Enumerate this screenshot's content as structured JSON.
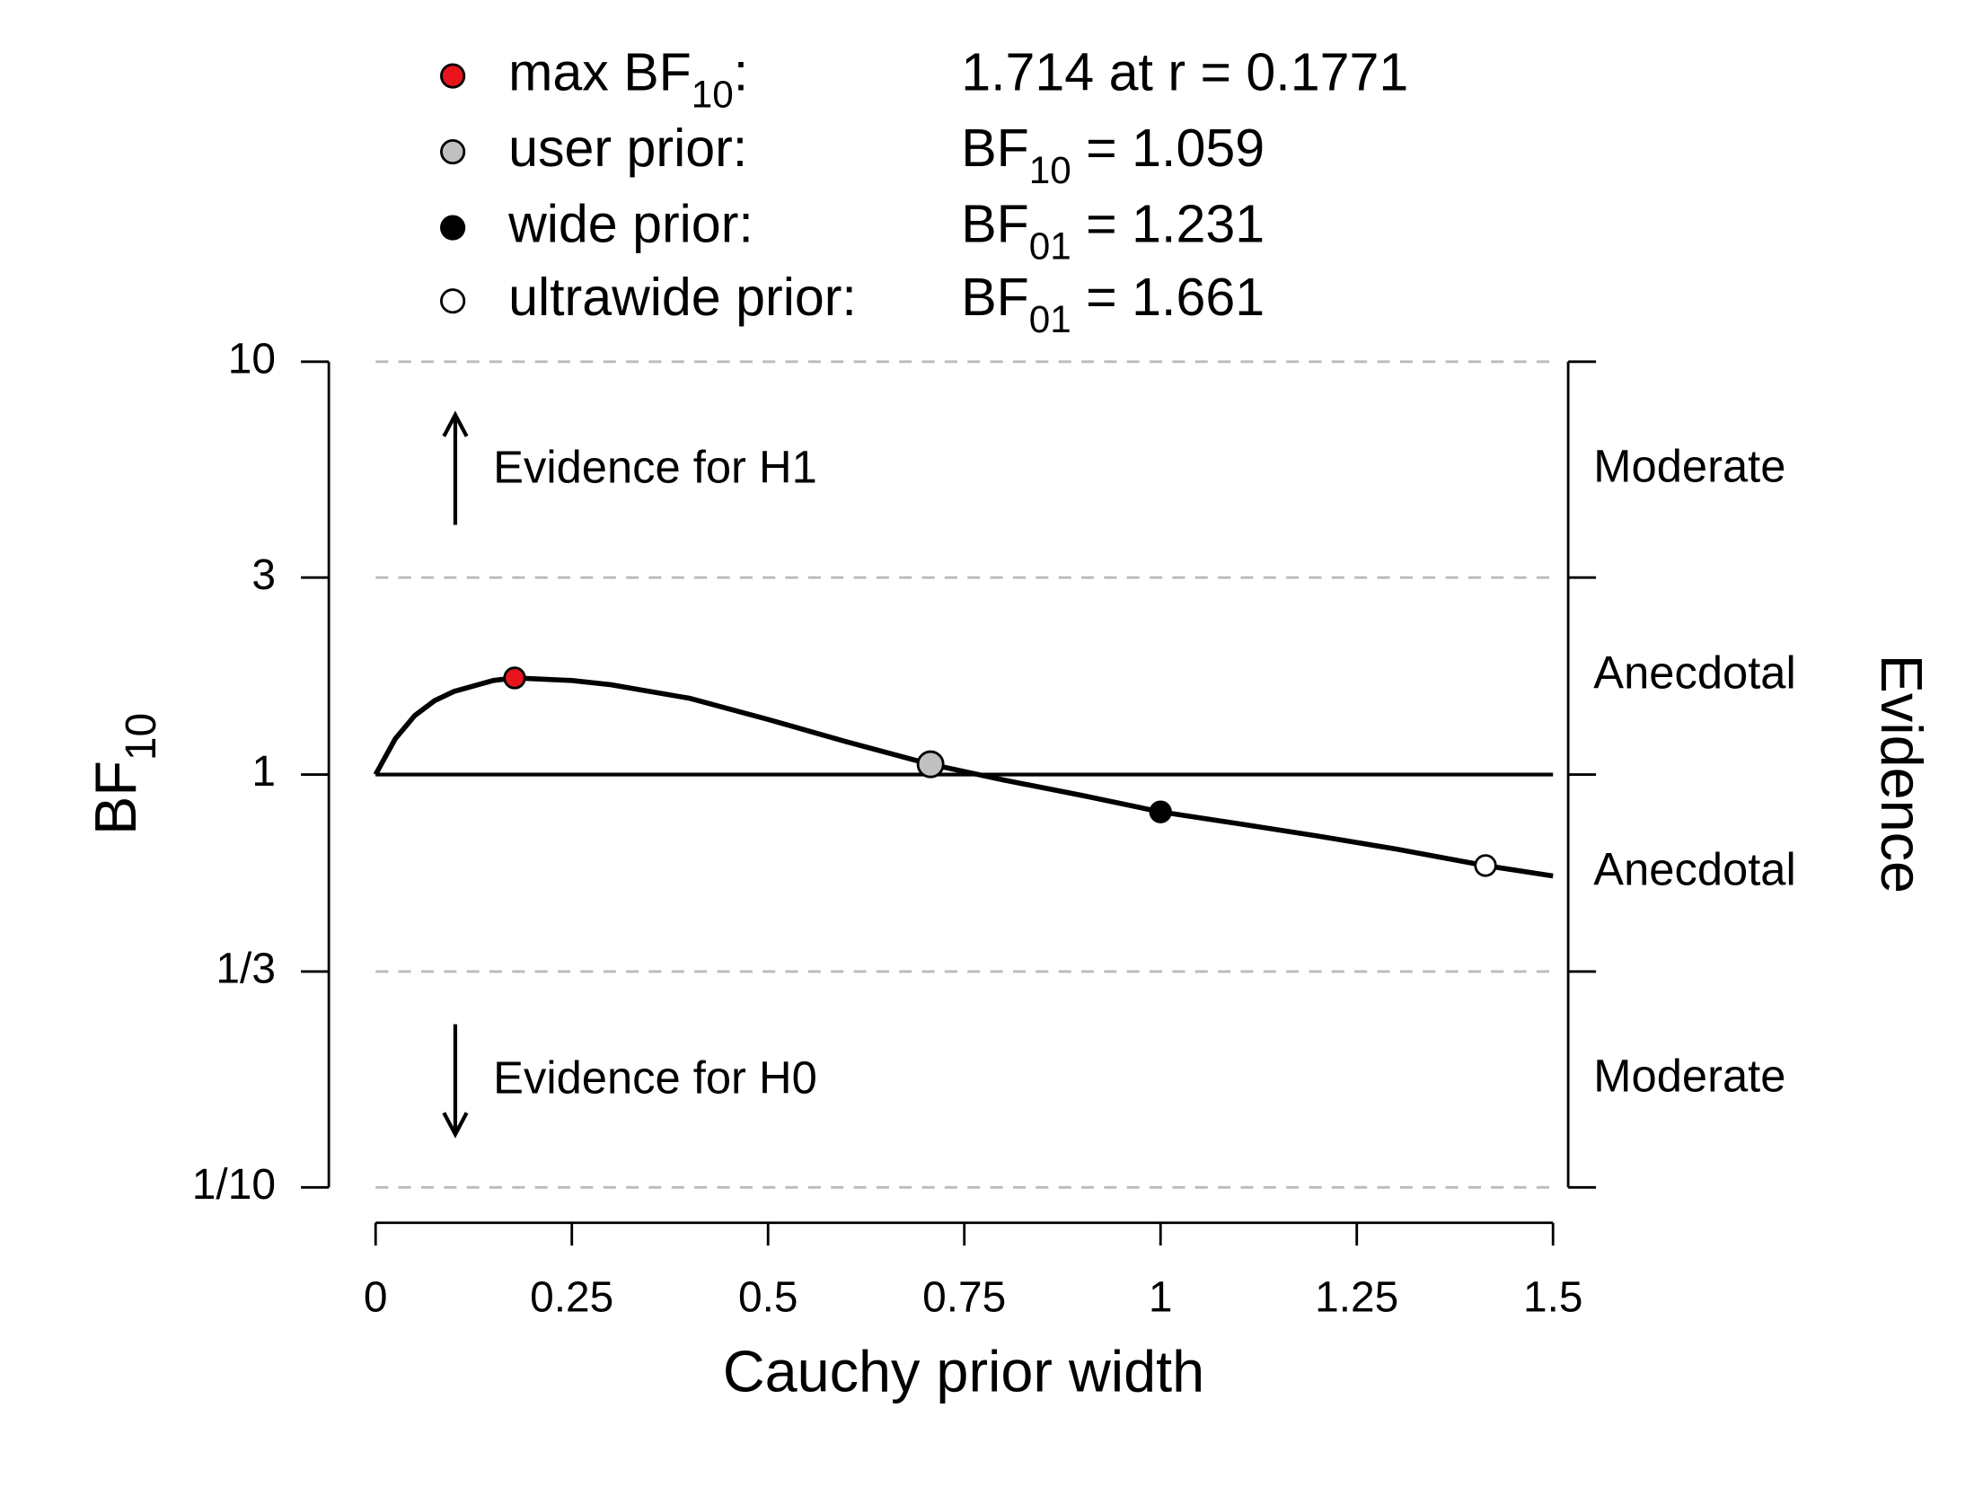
{
  "chart_data": {
    "type": "line",
    "log_y": true,
    "grid": true,
    "x_label": "Cauchy prior width",
    "y_label": {
      "pre": "BF",
      "sub": "10"
    },
    "right_label": "Evidence",
    "xlim": [
      0,
      1.5
    ],
    "xticks": [
      0,
      0.25,
      0.5,
      0.75,
      1,
      1.25,
      1.5
    ],
    "ylim": [
      0.1,
      10
    ],
    "yticks": [
      10,
      3,
      1,
      {
        "value": 0.3333,
        "label": "1/3"
      },
      {
        "value": 0.1,
        "label": "1/10"
      }
    ],
    "hline": 1,
    "right_labels": [
      "Moderate",
      "Anecdotal",
      "Anecdotal",
      "Moderate"
    ],
    "annotations": [
      "Evidence for H1",
      "Evidence for H0"
    ],
    "curve": {
      "color": "#000000",
      "x": [
        0,
        0.025,
        0.05,
        0.075,
        0.1,
        0.15,
        0.1771,
        0.25,
        0.3,
        0.4,
        0.5,
        0.6,
        0.707,
        0.8,
        0.9,
        1,
        1.1,
        1.2,
        1.3,
        1.414,
        1.5
      ],
      "values": [
        1,
        1.22,
        1.39,
        1.51,
        1.59,
        1.69,
        1.714,
        1.69,
        1.65,
        1.53,
        1.36,
        1.2,
        1.059,
        0.97,
        0.89,
        0.812,
        0.76,
        0.71,
        0.66,
        0.602,
        0.568
      ]
    },
    "points": {
      "x": [
        0.1771,
        0.707,
        1,
        1.414
      ],
      "values": [
        1.714,
        1.059,
        0.812,
        0.602
      ],
      "colors": [
        "#e8141c",
        "#c0c0c0",
        "#000000",
        "#ffffff"
      ]
    },
    "legend": [
      {
        "label": {
          "pre": "max BF",
          "sub": "10",
          "post": ":"
        },
        "value": {
          "pre": "1.714 at r = 0.1771"
        }
      },
      {
        "label": {
          "pre": "user prior:"
        },
        "value": {
          "pre": "BF",
          "sub": "10",
          "post": " = 1.059"
        }
      },
      {
        "label": {
          "pre": "wide prior:"
        },
        "value": {
          "pre": "BF",
          "sub": "01",
          "post": " = 1.231"
        }
      },
      {
        "label": {
          "pre": "ultrawide prior:"
        },
        "value": {
          "pre": "BF",
          "sub": "01",
          "post": " = 1.661"
        }
      }
    ]
  }
}
